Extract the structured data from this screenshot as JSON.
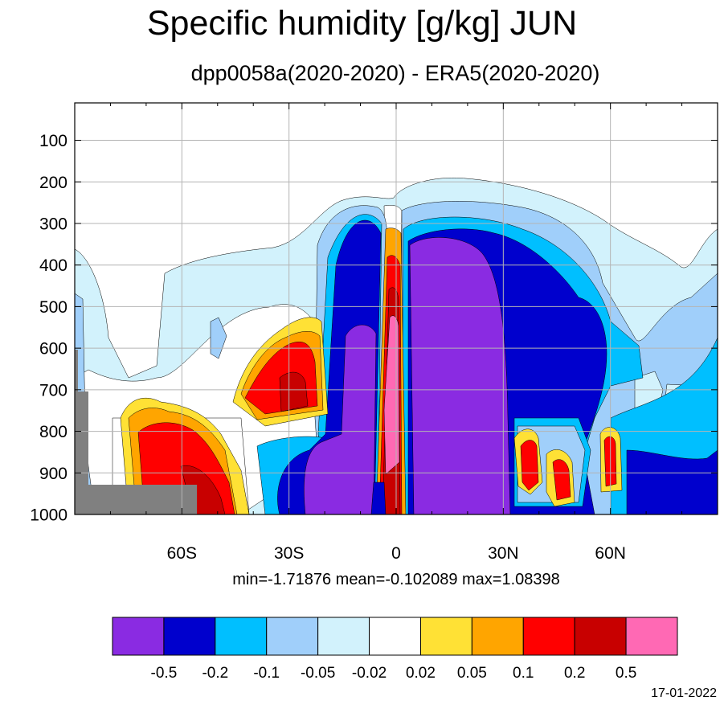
{
  "chart_data": {
    "type": "contour",
    "title": "Specific humidity [g/kg] JUN",
    "subtitle": "dpp0058a(2020-2020) - ERA5(2020-2020)",
    "stats": "min=-1.71876   mean=-0.102089   max=1.08398",
    "x_ticks": [
      "60S",
      "30S",
      "0",
      "30N",
      "60N"
    ],
    "x_tick_values": [
      -60,
      -30,
      0,
      30,
      60
    ],
    "xlim": [
      -90,
      90
    ],
    "y_ticks": [
      "100",
      "200",
      "300",
      "400",
      "500",
      "600",
      "700",
      "800",
      "900",
      "1000"
    ],
    "y_tick_values": [
      100,
      200,
      300,
      400,
      500,
      600,
      700,
      800,
      900,
      1000
    ],
    "ylim": [
      1000,
      10
    ],
    "grid": true,
    "levels": [
      "-0.5",
      "-0.2",
      "-0.1",
      "-0.05",
      "-0.02",
      "0.02",
      "0.05",
      "0.1",
      "0.2",
      "0.5"
    ],
    "colors": [
      "#8A2BE2",
      "#0000CD",
      "#00BFFF",
      "#A0CFFA",
      "#D2F2FC",
      "#FFFFFF",
      "#FFE135",
      "#FFA500",
      "#FF0000",
      "#C80000",
      "#FF69B4"
    ],
    "missing_color": "#808080",
    "min": -1.71876,
    "mean": -0.102089,
    "max": 1.08398
  },
  "footer": {
    "date": "17-01-2022"
  }
}
